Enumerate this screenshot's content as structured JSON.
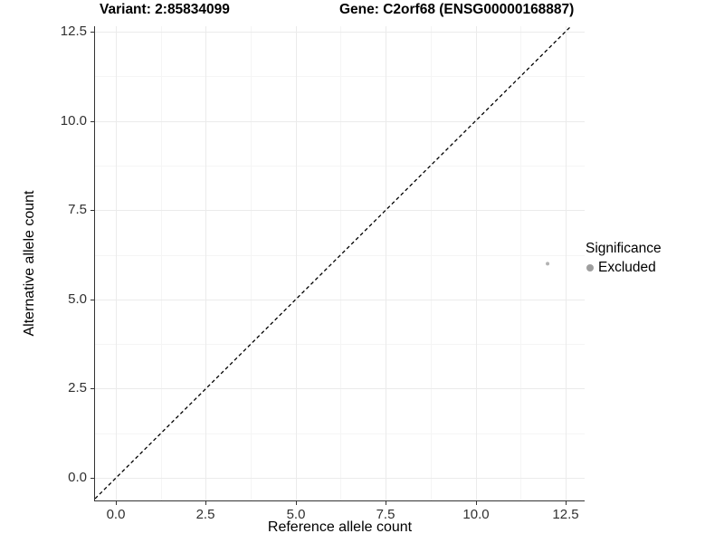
{
  "chart_data": {
    "type": "scatter",
    "titles": {
      "variant": "Variant: 2:85834099",
      "gene": "Gene: C2orf68 (ENSG00000168887)"
    },
    "xlabel": "Reference allele count",
    "ylabel": "Alternative allele count",
    "xlim": [
      -0.58,
      13.03
    ],
    "ylim": [
      -0.63,
      12.65
    ],
    "x_ticks": [
      {
        "value": 0,
        "label": "0.0"
      },
      {
        "value": 2.5,
        "label": "2.5"
      },
      {
        "value": 5,
        "label": "5.0"
      },
      {
        "value": 7.5,
        "label": "7.5"
      },
      {
        "value": 10,
        "label": "10.0"
      },
      {
        "value": 12.5,
        "label": "12.5"
      }
    ],
    "y_ticks": [
      {
        "value": 0,
        "label": "0.0"
      },
      {
        "value": 2.5,
        "label": "2.5"
      },
      {
        "value": 5,
        "label": "5.0"
      },
      {
        "value": 7.5,
        "label": "7.5"
      },
      {
        "value": 10,
        "label": "10.0"
      },
      {
        "value": 12.5,
        "label": "12.5"
      }
    ],
    "minor_ticks": [
      1.25,
      3.75,
      6.25,
      8.75,
      11.25
    ],
    "grid": {
      "major_color": "#ebebeb",
      "minor_color": "#f5f5f5"
    },
    "identity_line": {
      "equation": "y = x",
      "style": "dashed",
      "color": "#000000"
    },
    "series": [
      {
        "name": "Excluded",
        "point_color": "#b3b3b3",
        "points": [
          {
            "x": 12,
            "y": 6
          }
        ]
      }
    ],
    "legend": {
      "title": "Significance",
      "position": "right",
      "items": [
        {
          "label": "Excluded",
          "color": "#9e9e9e"
        }
      ]
    },
    "axis_color": "#333333",
    "tick_label_color": "#303030"
  }
}
